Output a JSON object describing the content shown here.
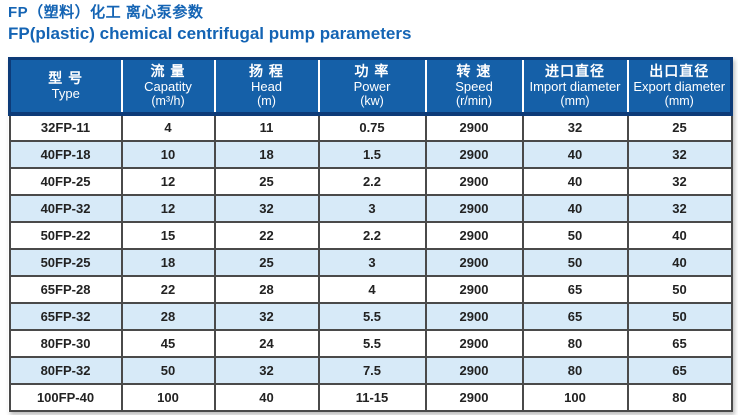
{
  "page": {
    "title_zh": "FP（塑料）化工 离心泵参数",
    "title_en": "FP(plastic) chemical centrifugal pump parameters"
  },
  "colors": {
    "title_blue": "#1464b4",
    "header_blue": "#1560a8",
    "header_edge_navy": "#0d3b78",
    "row_alt_blue": "#d7eaf8",
    "grid_gray": "#4a4a4a",
    "body_text": "#222222"
  },
  "table": {
    "columns": [
      {
        "zh": "型 号",
        "en": "Type",
        "unit": ""
      },
      {
        "zh": "流 量",
        "en": "Capatity",
        "unit": "(m³/h)"
      },
      {
        "zh": "扬 程",
        "en": "Head",
        "unit": "(m)"
      },
      {
        "zh": "功 率",
        "en": "Power",
        "unit": "(kw)"
      },
      {
        "zh": "转 速",
        "en": "Speed",
        "unit": "(r/min)"
      },
      {
        "zh": "进口直径",
        "en": "Import diameter",
        "unit": "(mm)"
      },
      {
        "zh": "出口直径",
        "en": "Export diameter",
        "unit": "(mm)"
      }
    ],
    "rows": [
      [
        "32FP-11",
        "4",
        "11",
        "0.75",
        "2900",
        "32",
        "25"
      ],
      [
        "40FP-18",
        "10",
        "18",
        "1.5",
        "2900",
        "40",
        "32"
      ],
      [
        "40FP-25",
        "12",
        "25",
        "2.2",
        "2900",
        "40",
        "32"
      ],
      [
        "40FP-32",
        "12",
        "32",
        "3",
        "2900",
        "40",
        "32"
      ],
      [
        "50FP-22",
        "15",
        "22",
        "2.2",
        "2900",
        "50",
        "40"
      ],
      [
        "50FP-25",
        "18",
        "25",
        "3",
        "2900",
        "50",
        "40"
      ],
      [
        "65FP-28",
        "22",
        "28",
        "4",
        "2900",
        "65",
        "50"
      ],
      [
        "65FP-32",
        "28",
        "32",
        "5.5",
        "2900",
        "65",
        "50"
      ],
      [
        "80FP-30",
        "45",
        "24",
        "5.5",
        "2900",
        "80",
        "65"
      ],
      [
        "80FP-32",
        "50",
        "32",
        "7.5",
        "2900",
        "80",
        "65"
      ],
      [
        "100FP-40",
        "100",
        "40",
        "11-15",
        "2900",
        "100",
        "80"
      ]
    ]
  }
}
